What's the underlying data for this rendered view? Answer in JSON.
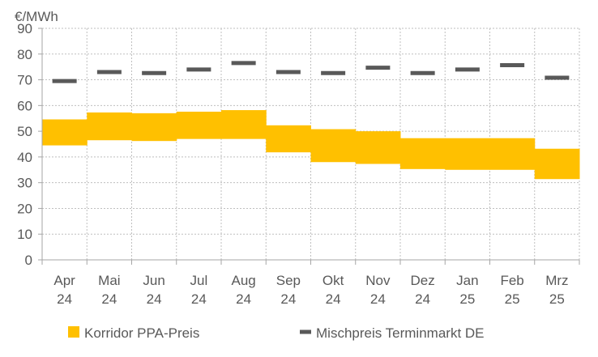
{
  "chart_data": {
    "type": "bar",
    "unit_label": "€/MWh",
    "categories": [
      [
        "Apr",
        "24"
      ],
      [
        "Mai",
        "24"
      ],
      [
        "Jun",
        "24"
      ],
      [
        "Jul",
        "24"
      ],
      [
        "Aug",
        "24"
      ],
      [
        "Sep",
        "24"
      ],
      [
        "Okt",
        "24"
      ],
      [
        "Nov",
        "24"
      ],
      [
        "Dez",
        "24"
      ],
      [
        "Jan",
        "25"
      ],
      [
        "Feb",
        "25"
      ],
      [
        "Mrz",
        "25"
      ]
    ],
    "ylim": [
      0,
      90
    ],
    "yticks": [
      0,
      10,
      20,
      30,
      40,
      50,
      60,
      70,
      80,
      90
    ],
    "grid": true,
    "legend_position": "bottom",
    "series": [
      {
        "name": "Korridor PPA-Preis",
        "kind": "range-bar",
        "color": "#FFC000",
        "low": [
          44.5,
          46.5,
          46.2,
          47.0,
          47.0,
          41.8,
          38.0,
          37.3,
          35.3,
          35.0,
          35.0,
          31.4
        ],
        "high": [
          54.6,
          57.3,
          57.0,
          57.6,
          58.2,
          52.3,
          50.8,
          50.0,
          47.3,
          47.3,
          47.3,
          43.2
        ]
      },
      {
        "name": "Mischpreis Terminmarkt DE",
        "kind": "dash-marker",
        "color": "#595959",
        "values": [
          69.5,
          73.0,
          72.6,
          74.0,
          76.5,
          73.0,
          72.6,
          74.7,
          72.6,
          74.0,
          75.7,
          70.8
        ]
      }
    ]
  }
}
